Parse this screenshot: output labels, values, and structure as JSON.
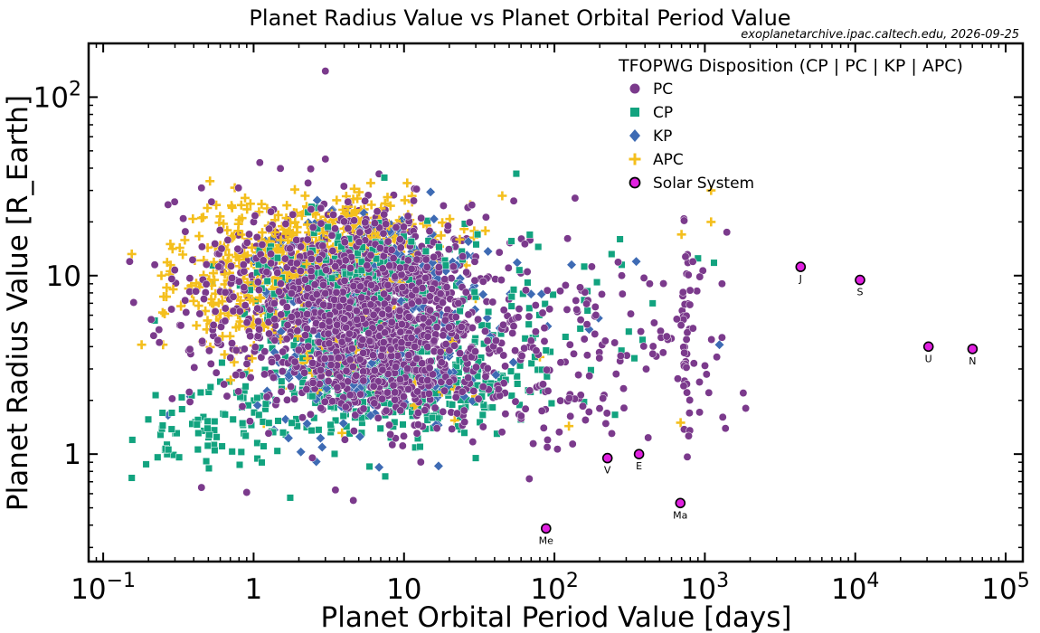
{
  "chart_data": {
    "type": "scatter",
    "title": "Planet Radius Value vs Planet Orbital Period Value",
    "source_note": "exoplanetarchive.ipac.caltech.edu, 2026-09-25",
    "xlabel": "Planet Orbital Period Value [days]",
    "ylabel": "Planet Radius Value [R_Earth]",
    "x_scale": "log",
    "y_scale": "log",
    "xlim": [
      0.08,
      130000
    ],
    "ylim": [
      0.25,
      200
    ],
    "x_ticks": [
      0.1,
      1,
      10,
      100,
      1000,
      10000,
      100000
    ],
    "y_ticks": [
      1,
      10,
      100
    ],
    "grid": false,
    "legend": {
      "title": "TFOPWG Disposition  (CP | PC | KP | APC)",
      "placement": "top-right",
      "entries": [
        {
          "label": "PC",
          "marker": "circle",
          "color": "#7b3a8c"
        },
        {
          "label": "CP",
          "marker": "square",
          "color": "#12a37f"
        },
        {
          "label": "KP",
          "marker": "diamond",
          "color": "#3e6bb4"
        },
        {
          "label": "APC",
          "marker": "plus",
          "color": "#f4bf1d"
        },
        {
          "label": "Solar System",
          "marker": "circle-outlined",
          "color": "#e020e0"
        }
      ]
    },
    "series": [
      {
        "name": "PC",
        "marker": "circle",
        "color": "#7b3a8c",
        "clusters": [
          {
            "count": 950,
            "logx_mean": 0.7,
            "logx_sd": 0.38,
            "logy_mean": 0.92,
            "logy_sd": 0.22
          },
          {
            "count": 500,
            "logx_mean": 0.9,
            "logx_sd": 0.4,
            "logy_mean": 0.55,
            "logy_sd": 0.22
          },
          {
            "count": 160,
            "logx_mean": 1.4,
            "logx_sd": 0.55,
            "logy_mean": 0.6,
            "logy_sd": 0.3
          },
          {
            "count": 110,
            "logx_mean": -0.2,
            "logx_sd": 0.25,
            "logy_mean": 0.85,
            "logy_sd": 0.3
          },
          {
            "count": 90,
            "logx_mean": 2.3,
            "logx_sd": 0.45,
            "logy_mean": 0.55,
            "logy_sd": 0.3
          },
          {
            "count": 45,
            "logx_mean": 2.87,
            "logx_sd": 0.03,
            "logy_mean": 0.7,
            "logy_sd": 0.35
          }
        ],
        "points": [
          {
            "x": 3.0,
            "y": 140
          },
          {
            "x": 3.0,
            "y": 45
          },
          {
            "x": 1.1,
            "y": 43
          },
          {
            "x": 2.3,
            "y": 33
          },
          {
            "x": 0.45,
            "y": 31
          },
          {
            "x": 0.15,
            "y": 12
          },
          {
            "x": 0.22,
            "y": 11.5
          },
          {
            "x": 3.5,
            "y": 0.63
          },
          {
            "x": 4.6,
            "y": 0.55
          },
          {
            "x": 0.9,
            "y": 0.61
          },
          {
            "x": 0.45,
            "y": 0.65
          },
          {
            "x": 1400,
            "y": 17.5
          },
          {
            "x": 1300,
            "y": 9.0
          },
          {
            "x": 1800,
            "y": 2.2
          },
          {
            "x": 790,
            "y": 1.7
          },
          {
            "x": 1200,
            "y": 3.5
          },
          {
            "x": 1300,
            "y": 4.5
          },
          {
            "x": 280,
            "y": 10
          },
          {
            "x": 430,
            "y": 9
          },
          {
            "x": 90,
            "y": 1.2
          },
          {
            "x": 85,
            "y": 1.4
          }
        ]
      },
      {
        "name": "CP",
        "marker": "square",
        "color": "#12a37f",
        "clusters": [
          {
            "count": 420,
            "logx_mean": 0.95,
            "logx_sd": 0.4,
            "logy_mean": 0.42,
            "logy_sd": 0.15
          },
          {
            "count": 260,
            "logx_mean": 0.65,
            "logx_sd": 0.4,
            "logy_mean": 0.95,
            "logy_sd": 0.18
          },
          {
            "count": 90,
            "logx_mean": -0.2,
            "logx_sd": 0.3,
            "logy_mean": 0.18,
            "logy_sd": 0.14
          },
          {
            "count": 45,
            "logx_mean": 1.9,
            "logx_sd": 0.45,
            "logy_mean": 0.8,
            "logy_sd": 0.3
          }
        ],
        "points": [
          {
            "x": 0.22,
            "y": 5.6
          },
          {
            "x": 0.23,
            "y": 0.96
          },
          {
            "x": 0.32,
            "y": 0.96
          },
          {
            "x": 1.75,
            "y": 0.57
          },
          {
            "x": 7.5,
            "y": 0.75
          },
          {
            "x": 240,
            "y": 13.2
          },
          {
            "x": 280,
            "y": 11.5
          },
          {
            "x": 450,
            "y": 7.0
          },
          {
            "x": 900,
            "y": 12.5
          },
          {
            "x": 1150,
            "y": 11.8
          },
          {
            "x": 30,
            "y": 0.95
          }
        ]
      },
      {
        "name": "KP",
        "marker": "diamond",
        "color": "#3e6bb4",
        "clusters": [
          {
            "count": 260,
            "logx_mean": 0.65,
            "logx_sd": 0.28,
            "logy_mean": 1.08,
            "logy_sd": 0.12
          },
          {
            "count": 220,
            "logx_mean": 0.8,
            "logx_sd": 0.35,
            "logy_mean": 0.5,
            "logy_sd": 0.2
          },
          {
            "count": 60,
            "logx_mean": 1.2,
            "logx_sd": 0.4,
            "logy_mean": 0.9,
            "logy_sd": 0.2
          }
        ],
        "points": [
          {
            "x": 0.27,
            "y": 1.65
          },
          {
            "x": 0.38,
            "y": 2.1
          },
          {
            "x": 350,
            "y": 12.0
          },
          {
            "x": 1250,
            "y": 4.1
          },
          {
            "x": 130,
            "y": 11.5
          },
          {
            "x": 90,
            "y": 5.2
          },
          {
            "x": 170,
            "y": 5.0
          }
        ]
      },
      {
        "name": "APC",
        "marker": "plus",
        "color": "#f4bf1d",
        "clusters": [
          {
            "count": 430,
            "logx_mean": 0.6,
            "logx_sd": 0.35,
            "logy_mean": 1.15,
            "logy_sd": 0.14
          },
          {
            "count": 190,
            "logx_mean": -0.1,
            "logx_sd": 0.25,
            "logy_mean": 0.95,
            "logy_sd": 0.2
          },
          {
            "count": 40,
            "logx_mean": 0.8,
            "logx_sd": 0.5,
            "logy_mean": 0.5,
            "logy_sd": 0.25
          }
        ],
        "points": [
          {
            "x": 0.18,
            "y": 4.1
          },
          {
            "x": 0.25,
            "y": 4.1
          },
          {
            "x": 0.72,
            "y": 24
          },
          {
            "x": 1100,
            "y": 30
          },
          {
            "x": 1100,
            "y": 20
          },
          {
            "x": 690,
            "y": 1.5
          },
          {
            "x": 700,
            "y": 17
          },
          {
            "x": 45,
            "y": 28
          },
          {
            "x": 80,
            "y": 3.5
          },
          {
            "x": 2.2,
            "y": 28
          },
          {
            "x": 6.0,
            "y": 33
          },
          {
            "x": 10.5,
            "y": 33
          }
        ]
      },
      {
        "name": "Solar System",
        "marker": "circle-outlined",
        "color": "#e020e0",
        "points": [
          {
            "label": "Me",
            "x": 88,
            "y": 0.383
          },
          {
            "label": "V",
            "x": 225,
            "y": 0.95
          },
          {
            "label": "E",
            "x": 365,
            "y": 1.0
          },
          {
            "label": "Ma",
            "x": 687,
            "y": 0.532
          },
          {
            "label": "J",
            "x": 4333,
            "y": 11.2
          },
          {
            "label": "S",
            "x": 10759,
            "y": 9.45
          },
          {
            "label": "U",
            "x": 30687,
            "y": 4.0
          },
          {
            "label": "N",
            "x": 60190,
            "y": 3.88
          }
        ]
      }
    ]
  }
}
